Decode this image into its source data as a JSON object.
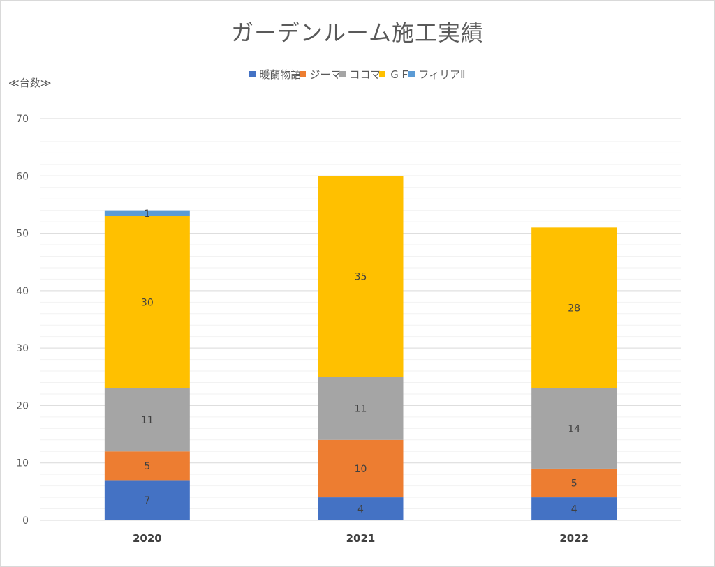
{
  "chart_data": {
    "type": "bar",
    "stacked": true,
    "title": "ガーデンルーム施工実績",
    "ylabel": "≪台数≫",
    "categories": [
      "2020",
      "2021",
      "2022"
    ],
    "ylim": [
      0,
      70
    ],
    "yticks": [
      0,
      10,
      20,
      30,
      40,
      50,
      60,
      70
    ],
    "grid": true,
    "minor_grid": true,
    "legend_position": "top",
    "series": [
      {
        "name": "暖蘭物語",
        "color": "#4472c4",
        "values": [
          7,
          4,
          4
        ]
      },
      {
        "name": "ジーマ",
        "color": "#ed7d31",
        "values": [
          5,
          10,
          5
        ]
      },
      {
        "name": "ココマ",
        "color": "#a5a5a5",
        "values": [
          11,
          11,
          14
        ]
      },
      {
        "name": "ＧＦ",
        "color": "#ffc000",
        "values": [
          30,
          35,
          28
        ]
      },
      {
        "name": "フィリアⅡ",
        "color": "#5b9bd5",
        "values": [
          1,
          0,
          0
        ]
      }
    ]
  }
}
